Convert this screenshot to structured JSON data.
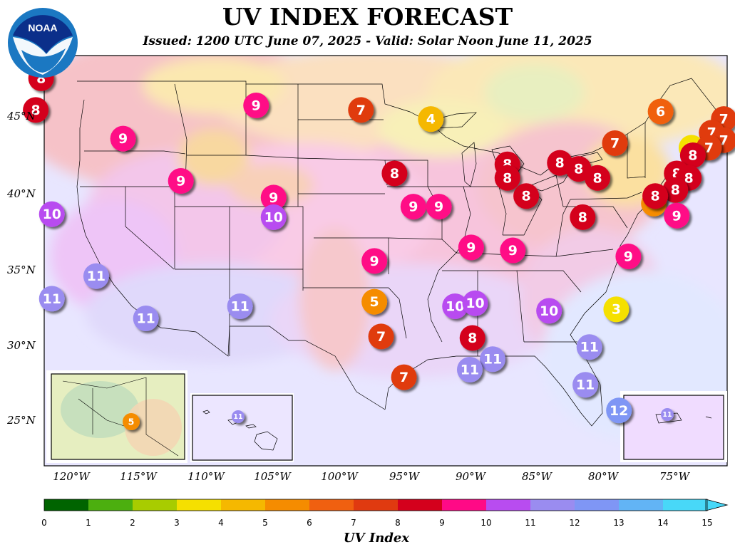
{
  "header": {
    "title": "UV INDEX FORECAST",
    "subtitle": "Issued: 1200 UTC June 07, 2025 - Valid: Solar Noon June 11, 2025",
    "logo_text": "NOAA"
  },
  "latitude_labels": [
    "45°N",
    "40°N",
    "35°N",
    "30°N",
    "25°N"
  ],
  "longitude_labels": [
    "120°W",
    "115°W",
    "110°W",
    "105°W",
    "100°W",
    "95°W",
    "90°W",
    "85°W",
    "80°W",
    "75°W"
  ],
  "colorbar": {
    "label": "UV Index",
    "ticks": [
      "0",
      "1",
      "2",
      "3",
      "4",
      "5",
      "6",
      "7",
      "8",
      "9",
      "10",
      "11",
      "12",
      "13",
      "14",
      "15"
    ],
    "colors": [
      "#006400",
      "#4caf0f",
      "#a8cc00",
      "#f5e000",
      "#f5b800",
      "#f58c00",
      "#f06010",
      "#e03a10",
      "#d4001c",
      "#ff0a86",
      "#b84cf0",
      "#9a8cf0",
      "#7f96f5",
      "#62b4f5",
      "#48d8f8"
    ]
  },
  "city_markers": [
    {
      "value": "8",
      "lon": -122.3,
      "lat": 47.6
    },
    {
      "value": "8",
      "lon": -122.7,
      "lat": 45.5
    },
    {
      "value": "9",
      "lon": -116.2,
      "lat": 43.6
    },
    {
      "value": "9",
      "lon": -106.3,
      "lat": 45.8
    },
    {
      "value": "7",
      "lon": -98.5,
      "lat": 45.5
    },
    {
      "value": "4",
      "lon": -93.3,
      "lat": 44.9
    },
    {
      "value": "9",
      "lon": -111.9,
      "lat": 40.8
    },
    {
      "value": "9",
      "lon": -105.0,
      "lat": 39.7
    },
    {
      "value": "10",
      "lon": -121.5,
      "lat": 38.6
    },
    {
      "value": "10",
      "lon": -105.0,
      "lat": 38.4
    },
    {
      "value": "8",
      "lon": -96.0,
      "lat": 41.3
    },
    {
      "value": "9",
      "lon": -94.6,
      "lat": 39.1
    },
    {
      "value": "9",
      "lon": -92.7,
      "lat": 39.1
    },
    {
      "value": "8",
      "lon": -87.6,
      "lat": 41.9
    },
    {
      "value": "8",
      "lon": -87.6,
      "lat": 41.0
    },
    {
      "value": "8",
      "lon": -83.7,
      "lat": 42.0
    },
    {
      "value": "8",
      "lon": -82.3,
      "lat": 41.6
    },
    {
      "value": "8",
      "lon": -80.9,
      "lat": 41.0
    },
    {
      "value": "8",
      "lon": -86.2,
      "lat": 39.8
    },
    {
      "value": "8",
      "lon": -82.0,
      "lat": 38.4
    },
    {
      "value": "7",
      "lon": -79.6,
      "lat": 43.3
    },
    {
      "value": "6",
      "lon": -76.2,
      "lat": 45.4
    },
    {
      "value": "7",
      "lon": -71.5,
      "lat": 44.9
    },
    {
      "value": "7",
      "lon": -72.4,
      "lat": 44.0
    },
    {
      "value": "7",
      "lon": -71.5,
      "lat": 43.5
    },
    {
      "value": "3",
      "lon": -73.9,
      "lat": 43.0
    },
    {
      "value": "7",
      "lon": -72.6,
      "lat": 43.0
    },
    {
      "value": "8",
      "lon": -73.8,
      "lat": 42.5
    },
    {
      "value": "8",
      "lon": -75.0,
      "lat": 41.3
    },
    {
      "value": "8",
      "lon": -74.1,
      "lat": 41.0
    },
    {
      "value": "8",
      "lon": -75.1,
      "lat": 40.2
    },
    {
      "value": "5",
      "lon": -76.7,
      "lat": 39.3
    },
    {
      "value": "8",
      "lon": -76.6,
      "lat": 39.8
    },
    {
      "value": "9",
      "lon": -75.0,
      "lat": 38.5
    },
    {
      "value": "9",
      "lon": -90.3,
      "lat": 36.4
    },
    {
      "value": "9",
      "lon": -87.2,
      "lat": 36.2
    },
    {
      "value": "9",
      "lon": -78.6,
      "lat": 35.8
    },
    {
      "value": "11",
      "lon": -118.2,
      "lat": 34.5
    },
    {
      "value": "11",
      "lon": -121.5,
      "lat": 33.0
    },
    {
      "value": "11",
      "lon": -114.5,
      "lat": 31.7
    },
    {
      "value": "11",
      "lon": -107.5,
      "lat": 32.5
    },
    {
      "value": "9",
      "lon": -97.5,
      "lat": 35.5
    },
    {
      "value": "5",
      "lon": -97.5,
      "lat": 32.8
    },
    {
      "value": "7",
      "lon": -97.0,
      "lat": 30.5
    },
    {
      "value": "7",
      "lon": -95.3,
      "lat": 27.8
    },
    {
      "value": "10",
      "lon": -91.5,
      "lat": 32.5
    },
    {
      "value": "10",
      "lon": -90.0,
      "lat": 32.7
    },
    {
      "value": "10",
      "lon": -84.5,
      "lat": 32.2
    },
    {
      "value": "3",
      "lon": -79.5,
      "lat": 32.3
    },
    {
      "value": "8",
      "lon": -90.2,
      "lat": 30.4
    },
    {
      "value": "11",
      "lon": -88.7,
      "lat": 29.0
    },
    {
      "value": "11",
      "lon": -90.4,
      "lat": 28.3
    },
    {
      "value": "11",
      "lon": -81.5,
      "lat": 29.8
    },
    {
      "value": "11",
      "lon": -81.8,
      "lat": 27.3
    },
    {
      "value": "12",
      "lon": -79.3,
      "lat": 25.6
    }
  ],
  "insets": {
    "alaska": {
      "value": "5"
    },
    "hawaii": {
      "value": "11"
    },
    "puerto_rico": {
      "value": "11"
    }
  }
}
